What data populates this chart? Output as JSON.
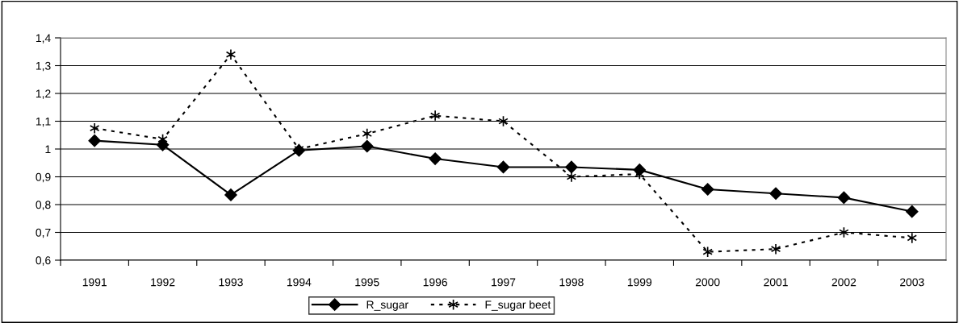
{
  "chart_data": {
    "type": "line",
    "categories": [
      "1991",
      "1992",
      "1993",
      "1994",
      "1995",
      "1996",
      "1997",
      "1998",
      "1999",
      "2000",
      "2001",
      "2002",
      "2003"
    ],
    "series": [
      {
        "name": "R_sugar",
        "color": "#000000",
        "marker": "diamond",
        "line_style": "solid",
        "values": [
          1.03,
          1.015,
          0.835,
          0.995,
          1.01,
          0.965,
          0.935,
          0.935,
          0.925,
          0.855,
          0.84,
          0.825,
          0.775
        ]
      },
      {
        "name": "F_sugar beet",
        "color": "#000000",
        "marker": "cross",
        "line_style": "dotted",
        "values": [
          1.075,
          1.035,
          1.34,
          1.0,
          1.055,
          1.12,
          1.1,
          0.9,
          0.91,
          0.63,
          0.64,
          0.7,
          0.68
        ]
      }
    ],
    "ylim": [
      0.6,
      1.4
    ],
    "yticks": [
      {
        "value": 0.6,
        "label": "0,6"
      },
      {
        "value": 0.7,
        "label": "0,7"
      },
      {
        "value": 0.8,
        "label": "0,8"
      },
      {
        "value": 0.9,
        "label": "0,9"
      },
      1,
      {
        "value": 1.1,
        "label": "1,1"
      },
      {
        "value": 1.2,
        "label": "1,2"
      },
      {
        "value": 1.3,
        "label": "1,3"
      },
      {
        "value": 1.4,
        "label": "1,4"
      }
    ],
    "grid": "y",
    "legend": "bottom"
  }
}
